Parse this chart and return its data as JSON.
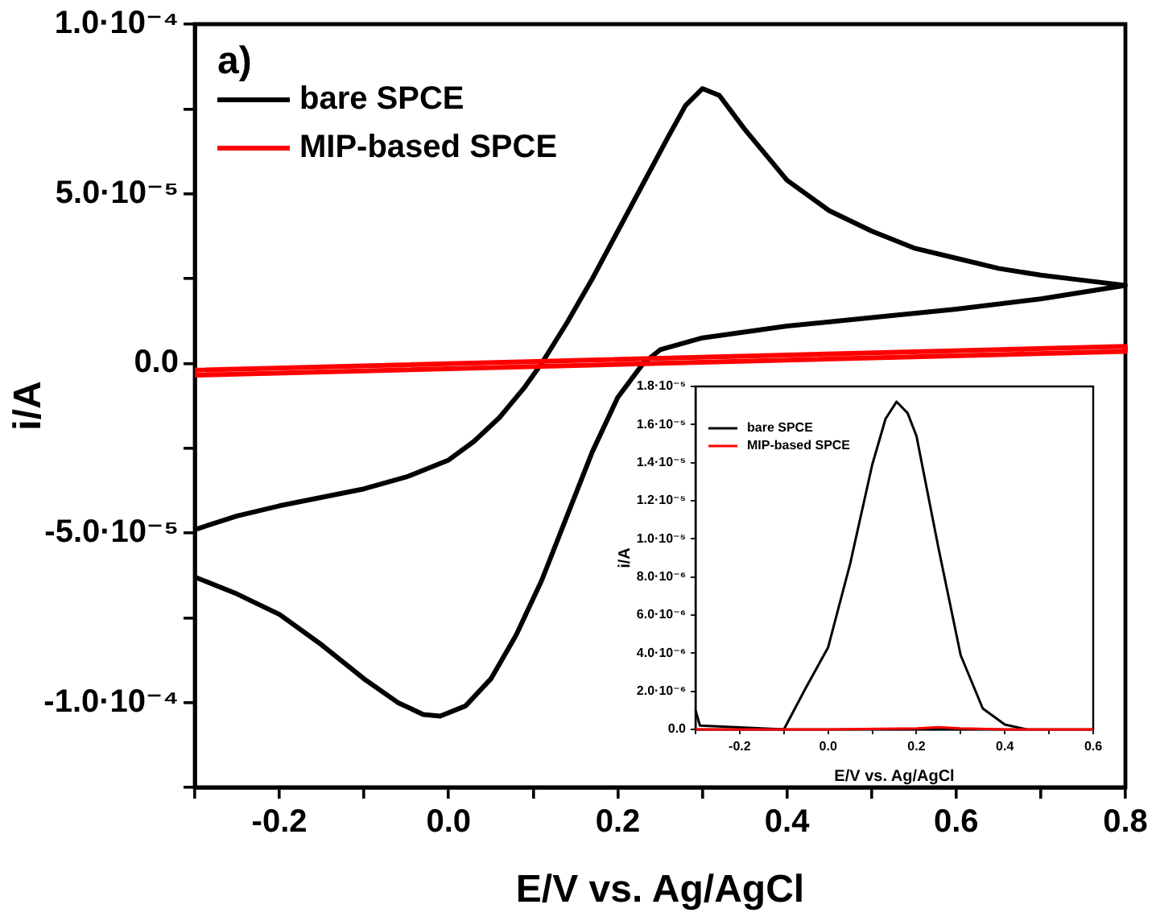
{
  "chart_data": [
    {
      "type": "line",
      "xlabel": "E/V vs. Ag/AgCl",
      "ylabel": "i/A",
      "annotations": [
        "a)"
      ],
      "legend": "top left",
      "grid": false,
      "xlim": [
        -0.3,
        0.8
      ],
      "xticks": [
        {
          "value": -0.3,
          "label": null
        },
        -0.2,
        {
          "value": -0.1,
          "label": null
        },
        {
          "value": 0,
          "label": "0.0"
        },
        {
          "value": 0.1,
          "label": null
        },
        0.2,
        {
          "value": 0.3,
          "label": null
        },
        0.4,
        {
          "value": 0.5,
          "label": null
        },
        0.6,
        {
          "value": 0.7,
          "label": null
        },
        0.8
      ],
      "ylim": [
        -0.000125,
        0.0001
      ],
      "yticks": [
        {
          "value": -0.000125,
          "label": null
        },
        {
          "value": -0.0001,
          "label": "-1.0·10⁻⁴"
        },
        {
          "value": -7.5e-05,
          "label": null
        },
        {
          "value": -5e-05,
          "label": "-5.0·10⁻⁵"
        },
        {
          "value": -2.5e-05,
          "label": null
        },
        {
          "value": 0,
          "label": "0.0"
        },
        {
          "value": 2.5e-05,
          "label": null
        },
        {
          "value": 5e-05,
          "label": "5.0·10⁻⁵"
        },
        {
          "value": 7.5e-05,
          "label": null
        },
        {
          "value": 0.0001,
          "label": "1.0·10⁻⁴"
        }
      ],
      "series": [
        {
          "name": "bare SPCE",
          "color": "#000000",
          "x": [
            -0.3,
            -0.25,
            -0.2,
            -0.15,
            -0.1,
            -0.05,
            0,
            0.03,
            0.06,
            0.09,
            0.11,
            0.14,
            0.17,
            0.2,
            0.23,
            0.26,
            0.28,
            0.3,
            0.32,
            0.35,
            0.4,
            0.45,
            0.5,
            0.55,
            0.6,
            0.65,
            0.7,
            0.75,
            0.8,
            0.7,
            0.6,
            0.5,
            0.4,
            0.3,
            0.25,
            0.23,
            0.2,
            0.17,
            0.14,
            0.11,
            0.08,
            0.05,
            0.02,
            -0.01,
            -0.03,
            -0.06,
            -0.1,
            -0.15,
            -0.2,
            -0.25,
            -0.3
          ],
          "values": [
            -4.9e-05,
            -4.5e-05,
            -4.2e-05,
            -3.95e-05,
            -3.7e-05,
            -3.35e-05,
            -2.85e-05,
            -2.3e-05,
            -1.6e-05,
            -7e-06,
            0,
            1.2e-05,
            2.5e-05,
            3.9e-05,
            5.3e-05,
            6.7e-05,
            7.6e-05,
            8.1e-05,
            7.9e-05,
            6.9e-05,
            5.4e-05,
            4.5e-05,
            3.9e-05,
            3.4e-05,
            3.1e-05,
            2.8e-05,
            2.6e-05,
            2.45e-05,
            2.3e-05,
            1.9e-05,
            1.6e-05,
            1.35e-05,
            1.1e-05,
            7.5e-06,
            4e-06,
            0,
            -1e-05,
            -2.6e-05,
            -4.5e-05,
            -6.4e-05,
            -8e-05,
            -9.3e-05,
            -0.000101,
            -0.000104,
            -0.0001035,
            -0.0001,
            -9.3e-05,
            -8.3e-05,
            -7.4e-05,
            -6.8e-05,
            -6.3e-05
          ]
        },
        {
          "name": "MIP-based SPCE",
          "color": "#ff0000",
          "x": [
            -0.3,
            0.8,
            0.8,
            -0.3
          ],
          "values": [
            -2e-06,
            5e-06,
            3.5e-06,
            -3.5e-06
          ]
        }
      ]
    },
    {
      "type": "line",
      "xlabel": "E/V vs. Ag/AgCl",
      "ylabel": "i/A",
      "legend": "top left",
      "grid": false,
      "xlim": [
        -0.3,
        0.6
      ],
      "xticks": [
        {
          "value": -0.3,
          "label": null
        },
        -0.2,
        {
          "value": -0.1,
          "label": null
        },
        {
          "value": 0,
          "label": "0.0"
        },
        {
          "value": 0.1,
          "label": null
        },
        0.2,
        {
          "value": 0.3,
          "label": null
        },
        0.4,
        {
          "value": 0.5,
          "label": null
        },
        0.6
      ],
      "ylim": [
        0,
        1.8e-05
      ],
      "yticks": [
        {
          "value": 0,
          "label": "0.0"
        },
        {
          "value": 2e-06,
          "label": "2.0·10⁻⁶"
        },
        {
          "value": 4e-06,
          "label": "4.0·10⁻⁶"
        },
        {
          "value": 6e-06,
          "label": "6.0·10⁻⁶"
        },
        {
          "value": 8e-06,
          "label": "8.0·10⁻⁶"
        },
        {
          "value": 1e-05,
          "label": "1.0·10⁻⁵"
        },
        {
          "value": 1.2e-05,
          "label": "1.2·10⁻⁵"
        },
        {
          "value": 1.4e-05,
          "label": "1.4·10⁻⁵"
        },
        {
          "value": 1.6e-05,
          "label": "1.6·10⁻⁵"
        },
        {
          "value": 1.8e-05,
          "label": "1.8·10⁻⁵"
        }
      ],
      "series": [
        {
          "name": "bare SPCE",
          "color": "#000000",
          "x": [
            -0.3,
            -0.29,
            -0.1,
            -0.05,
            0,
            0.05,
            0.1,
            0.13,
            0.155,
            0.18,
            0.2,
            0.25,
            0.3,
            0.35,
            0.4,
            0.45
          ],
          "values": [
            1e-06,
            2e-07,
            0,
            2.2e-06,
            4.3e-06,
            8.7e-06,
            1.39e-05,
            1.63e-05,
            1.72e-05,
            1.66e-05,
            1.54e-05,
            9.5e-06,
            3.9e-06,
            1.1e-06,
            2.5e-07,
            0
          ]
        },
        {
          "name": "MIP-based SPCE",
          "color": "#ff0000",
          "x": [
            -0.3,
            -0.2,
            0,
            0.2,
            0.25,
            0.3,
            0.4,
            0.6
          ],
          "values": [
            0,
            0,
            0,
            5e-08,
            1.2e-07,
            5e-08,
            0,
            0
          ]
        }
      ]
    }
  ]
}
